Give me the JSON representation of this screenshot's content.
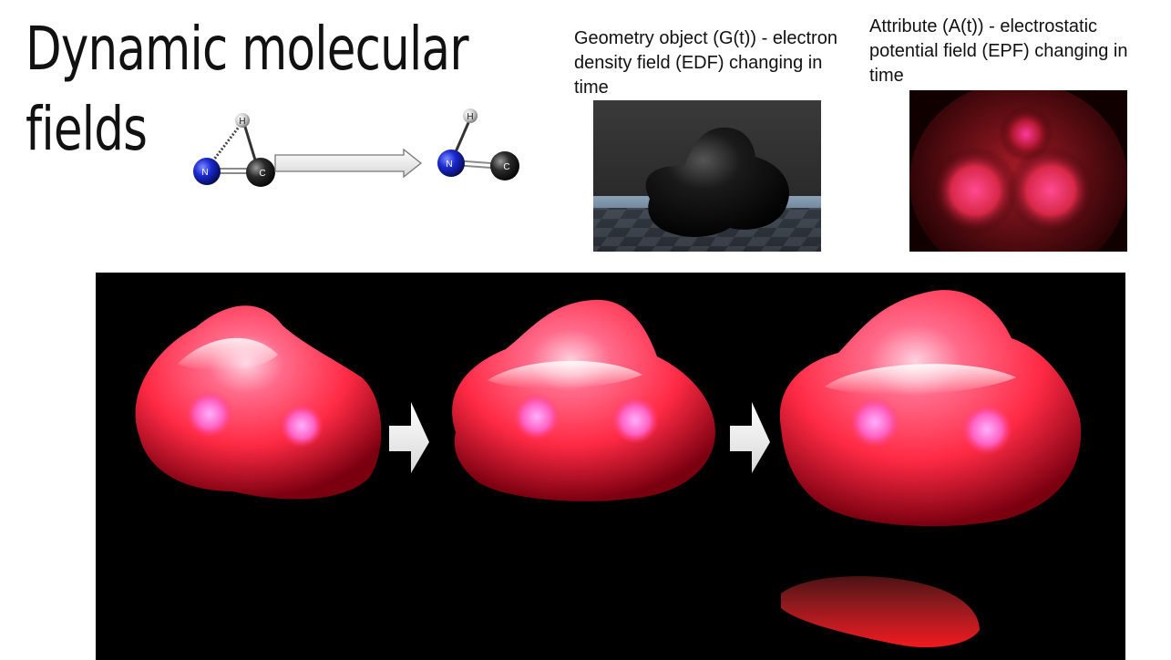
{
  "slide": {
    "title_line1": "Dynamic molecular",
    "title_line2": "fields"
  },
  "scheme": {
    "atoms": {
      "h": "H",
      "n": "N",
      "c": "C"
    }
  },
  "captions": {
    "edf": "Geometry object (G(t)) - electron density field (EDF) changing in time",
    "epf": "Attribute (A(t))  - electrostatic potential field (EPF) changing in time"
  },
  "colors": {
    "nitrogen": "#1a2ad0",
    "carbon": "#2a2a2a",
    "hydrogen": "#d8d8d8",
    "field_red": "#ff3050",
    "background_dark": "#000000"
  }
}
